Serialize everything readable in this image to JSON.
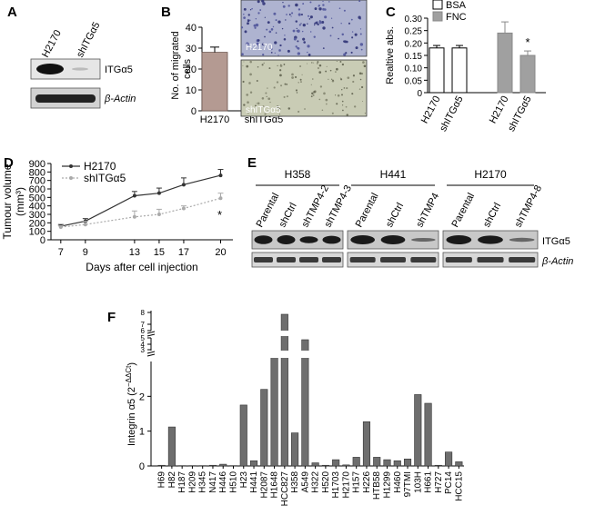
{
  "panels": {
    "A": {
      "letter": "A",
      "lanes": [
        "H2170",
        "shITGα5"
      ],
      "bands": [
        "ITGα5",
        "β-Actin"
      ]
    },
    "B": {
      "letter": "B",
      "photo_labels": [
        "H2170",
        "shITGα5"
      ]
    },
    "C": {
      "letter": "C"
    },
    "D": {
      "letter": "D"
    },
    "E": {
      "letter": "E",
      "groups": [
        {
          "name": "H358",
          "lanes": [
            "Parental",
            "shCtrl",
            "shTMP4-2",
            "shTMP4-3"
          ]
        },
        {
          "name": "H441",
          "lanes": [
            "Parental",
            "shCtrl",
            "shTMP4"
          ]
        },
        {
          "name": "H2170",
          "lanes": [
            "Parental",
            "shCtrl",
            "shTMP4-8"
          ]
        }
      ],
      "bands": [
        "ITGα5",
        "β-Actin"
      ]
    },
    "F": {
      "letter": "F"
    }
  },
  "chart_data": [
    {
      "id": "B",
      "type": "bar",
      "categories": [
        "H2170",
        "shITGα5"
      ],
      "values": [
        28,
        0
      ],
      "errors": [
        2.5,
        0
      ],
      "ylabel": "No. of migrated cells",
      "ylim": [
        0,
        40
      ],
      "yticks": [
        0,
        10,
        20,
        30,
        40
      ],
      "colors": [
        "#b49a92"
      ]
    },
    {
      "id": "C",
      "type": "bar",
      "categories": [
        "H2170",
        "shITGα5",
        "H2170",
        "shITGα5"
      ],
      "series": [
        {
          "name": "BSA",
          "values": [
            0.18,
            0.18,
            null,
            null
          ],
          "errors": [
            0.01,
            0.01,
            null,
            null
          ],
          "color": "#ffffff"
        },
        {
          "name": "FNC",
          "values": [
            null,
            null,
            0.24,
            0.15
          ],
          "errors": [
            null,
            null,
            0.045,
            0.018
          ],
          "color": "#a0a0a0"
        }
      ],
      "annotations": [
        "*"
      ],
      "ylabel": "Realtive abs.",
      "ylim": [
        0,
        0.3
      ],
      "yticks": [
        "0",
        "0.05",
        "0.10",
        "0.15",
        "0.20",
        "0.25",
        "0.30"
      ],
      "legend": "top"
    },
    {
      "id": "D",
      "type": "line",
      "x": [
        7,
        9,
        13,
        15,
        17,
        20
      ],
      "series": [
        {
          "name": "H2170",
          "values": [
            160,
            220,
            520,
            550,
            650,
            760
          ],
          "errors": [
            20,
            30,
            50,
            60,
            80,
            70
          ],
          "color": "#333333"
        },
        {
          "name": "shITGα5",
          "values": [
            150,
            180,
            270,
            300,
            370,
            490
          ],
          "errors": [
            15,
            40,
            70,
            60,
            30,
            60
          ],
          "color": "#aaaaaa"
        }
      ],
      "annotations": [
        "*"
      ],
      "xlabel": "Days after cell injection",
      "ylabel": "Tumour volume (mm³)",
      "ylim": [
        0,
        900
      ],
      "yticks": [
        0,
        100,
        200,
        300,
        400,
        500,
        600,
        700,
        800,
        900
      ],
      "legend": "top-left"
    },
    {
      "id": "F",
      "type": "bar",
      "categories": [
        "H69",
        "H82",
        "H187",
        "H209",
        "H345",
        "N417",
        "H446",
        "H510",
        "H23",
        "H441",
        "H2087",
        "H1648",
        "HCC827",
        "H358",
        "A549",
        "H322",
        "H520",
        "H1703",
        "H2170",
        "H157",
        "H226",
        "HTB58",
        "H1299",
        "H460",
        "97TMI",
        "103H",
        "H661",
        "H727",
        "PC14",
        "HCC15"
      ],
      "values": [
        0.02,
        1.12,
        0.01,
        0.01,
        0.01,
        0.02,
        0.05,
        0.01,
        1.75,
        0.15,
        2.2,
        3.6,
        7,
        0.95,
        4.6,
        0.09,
        0.02,
        0.18,
        0.03,
        0.25,
        1.27,
        0.25,
        0.18,
        0.15,
        0.2,
        2.05,
        1.8,
        0.02,
        0.4,
        0.12
      ],
      "ylabel": "Integrin α5 (2^-ΔΔCt)",
      "ylabel_main": "Integrin α5 (2",
      "ylabel_sup": "−ΔΔCt",
      "ylabel_close": ")",
      "yticks": [
        "0",
        "1",
        "2",
        "3",
        "4",
        "5",
        "6",
        "7",
        "8"
      ],
      "color": "#6e6e6e"
    }
  ]
}
